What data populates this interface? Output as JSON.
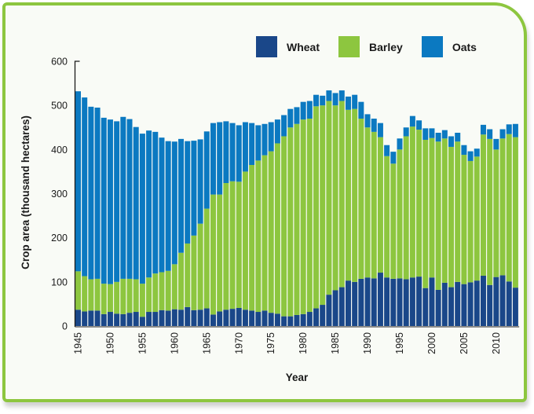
{
  "chart_data": {
    "type": "bar",
    "stacked": true,
    "title": "",
    "xlabel": "Year",
    "ylabel": "Crop area (thousand hectares)",
    "ylim": [
      0,
      600
    ],
    "yticks": [
      0,
      100,
      200,
      300,
      400,
      500,
      600
    ],
    "xtick_labels": [
      "1945",
      "1950",
      "1955",
      "1960",
      "1965",
      "1970",
      "1975",
      "1980",
      "1985",
      "1990",
      "1995",
      "2000",
      "2005",
      "2010"
    ],
    "legend_position": "top-right",
    "grid": false,
    "categories": [
      1945,
      1946,
      1947,
      1948,
      1949,
      1950,
      1951,
      1952,
      1953,
      1954,
      1955,
      1956,
      1957,
      1958,
      1959,
      1960,
      1961,
      1962,
      1963,
      1964,
      1965,
      1966,
      1967,
      1968,
      1969,
      1970,
      1971,
      1972,
      1973,
      1974,
      1975,
      1976,
      1977,
      1978,
      1979,
      1980,
      1981,
      1982,
      1983,
      1984,
      1985,
      1986,
      1987,
      1988,
      1989,
      1990,
      1991,
      1992,
      1993,
      1994,
      1995,
      1996,
      1997,
      1998,
      1999,
      2000,
      2001,
      2002,
      2003,
      2004,
      2005,
      2006,
      2007,
      2008,
      2009,
      2010,
      2011,
      2012,
      2013
    ],
    "series": [
      {
        "name": "Wheat",
        "color": "#1a4789",
        "values": [
          37,
          33,
          35,
          35,
          27,
          32,
          28,
          27,
          30,
          32,
          21,
          32,
          32,
          36,
          35,
          38,
          37,
          43,
          36,
          37,
          40,
          26,
          33,
          37,
          39,
          41,
          37,
          35,
          32,
          35,
          30,
          28,
          22,
          22,
          25,
          27,
          32,
          40,
          48,
          71,
          81,
          88,
          103,
          100,
          107,
          110,
          108,
          121,
          110,
          107,
          108,
          106,
          110,
          112,
          86,
          110,
          82,
          98,
          88,
          100,
          95,
          99,
          103,
          114,
          93,
          111,
          115,
          101,
          87
        ]
      },
      {
        "name": "Barley",
        "color": "#8dc63f",
        "values": [
          87,
          80,
          71,
          72,
          69,
          63,
          72,
          80,
          77,
          74,
          75,
          78,
          87,
          86,
          90,
          102,
          129,
          144,
          169,
          195,
          226,
          272,
          265,
          287,
          289,
          286,
          313,
          330,
          343,
          352,
          366,
          386,
          408,
          428,
          433,
          441,
          438,
          458,
          452,
          439,
          419,
          422,
          387,
          392,
          363,
          340,
          332,
          307,
          275,
          261,
          292,
          324,
          342,
          333,
          336,
          316,
          336,
          327,
          318,
          318,
          293,
          275,
          281,
          320,
          331,
          289,
          310,
          334,
          341
        ]
      },
      {
        "name": "Oats",
        "color": "#0b79c1",
        "values": [
          408,
          405,
          391,
          388,
          376,
          373,
          364,
          367,
          362,
          345,
          340,
          333,
          321,
          305,
          294,
          278,
          258,
          232,
          215,
          191,
          175,
          162,
          164,
          140,
          132,
          128,
          112,
          95,
          80,
          71,
          66,
          54,
          48,
          42,
          38,
          40,
          40,
          26,
          22,
          24,
          28,
          24,
          30,
          32,
          38,
          30,
          30,
          32,
          25,
          27,
          25,
          20,
          24,
          21,
          26,
          22,
          20,
          19,
          24,
          20,
          22,
          22,
          18,
          22,
          22,
          24,
          21,
          22,
          30
        ]
      }
    ]
  }
}
